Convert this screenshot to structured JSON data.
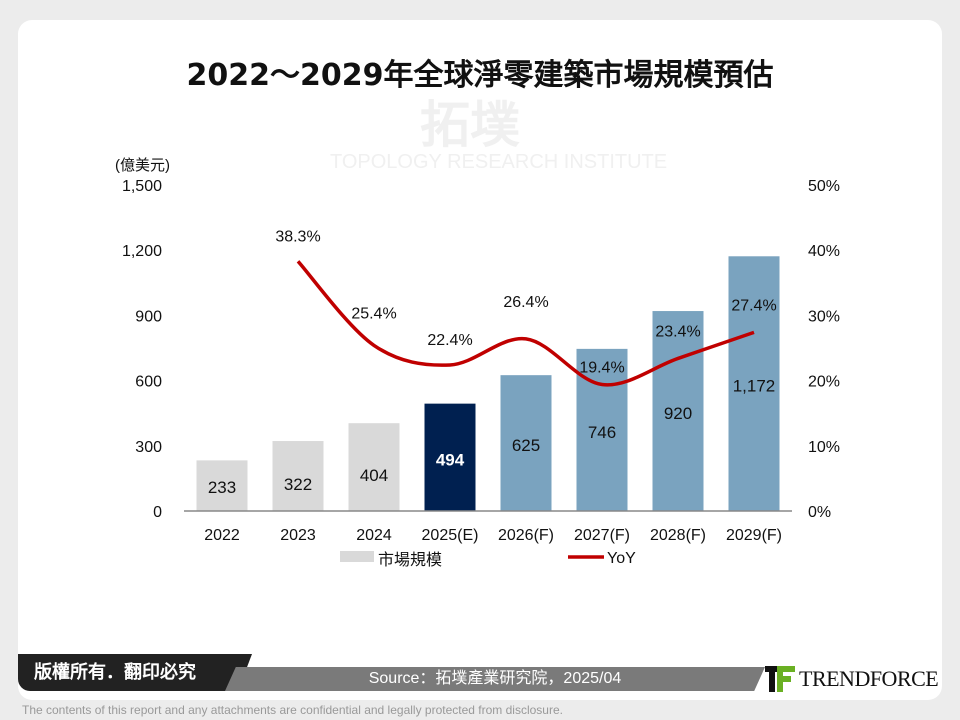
{
  "title": "2022～2029年全球淨零建築市場規模預估",
  "chart_data": {
    "type": "bar",
    "categories": [
      "2022",
      "2023",
      "2024",
      "2025(E)",
      "2026(F)",
      "2027(F)",
      "2028(F)",
      "2029(F)"
    ],
    "series": [
      {
        "name": "市場規模",
        "type": "bar",
        "axis": "left",
        "values": [
          233,
          322,
          404,
          494,
          625,
          746,
          920,
          1172
        ],
        "labels": [
          "233",
          "322",
          "404",
          "494",
          "625",
          "746",
          "920",
          "1,172"
        ]
      },
      {
        "name": "YoY",
        "type": "line",
        "axis": "right",
        "values": [
          null,
          38.3,
          25.4,
          22.4,
          26.4,
          19.4,
          23.4,
          27.4
        ],
        "labels": [
          "",
          "38.3%",
          "25.4%",
          "22.4%",
          "26.4%",
          "19.4%",
          "23.4%",
          "27.4%"
        ]
      }
    ],
    "bar_colors": [
      "#d9d9d9",
      "#d9d9d9",
      "#d9d9d9",
      "#002050",
      "#7aa3bf",
      "#7aa3bf",
      "#7aa3bf",
      "#7aa3bf"
    ],
    "line_color": "#c00000",
    "yunit": "(億美元)",
    "ylim": [
      0,
      1500
    ],
    "yticks": [
      "0",
      "300",
      "600",
      "900",
      "1,200",
      "1,500"
    ],
    "y2lim": [
      0,
      50
    ],
    "y2ticks": [
      "0%",
      "10%",
      "20%",
      "30%",
      "40%",
      "50%"
    ],
    "legend": "bottom",
    "grid": false
  },
  "watermark": {
    "cn": "拓墣",
    "en": "TOPOLOGY RESEARCH INSTITUTE"
  },
  "footer": {
    "copyright": "版權所有．翻印必究",
    "source": "Source：拓墣產業研究院，2025/04",
    "logo": "TRENDFORCE",
    "disclaimer": "The contents of this report and any attachments are confidential and legally protected from disclosure."
  }
}
